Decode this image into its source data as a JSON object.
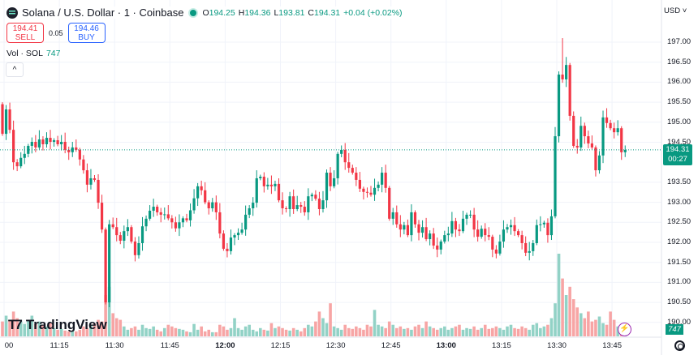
{
  "header": {
    "symbol": "Solana / U.S. Dollar · 1 · Coinbase",
    "open_label": "O",
    "open": "194.25",
    "high_label": "H",
    "high": "194.36",
    "low_label": "L",
    "low": "193.81",
    "close_label": "C",
    "close": "194.31",
    "change": "+0.04 (+0.02%)"
  },
  "trade": {
    "sell_price": "194.41",
    "sell_label": "SELL",
    "spread": "0.05",
    "buy_price": "194.46",
    "buy_label": "BUY"
  },
  "volume_legend": {
    "label": "Vol · SOL",
    "value": "747"
  },
  "collapse_icon": "^",
  "currency": "USD ˅",
  "current_price": {
    "price": "194.31",
    "countdown": "00:27"
  },
  "volume_badge": "747",
  "watermark": "TradingView",
  "colors": {
    "up": "#089981",
    "down": "#f23645",
    "up_vol": "#92d2c6",
    "down_vol": "#f7a5a5"
  },
  "chart_data": {
    "type": "candlestick",
    "title": "Solana / U.S. Dollar · 1 · Coinbase",
    "ylim": [
      189.9,
      197.3
    ],
    "y_ticks": [
      "197.00",
      "196.50",
      "196.00",
      "195.50",
      "195.00",
      "194.50",
      "193.50",
      "193.00",
      "192.50",
      "192.00",
      "191.50",
      "191.00",
      "190.50",
      "190.00"
    ],
    "x_ticks": [
      {
        "label": "00",
        "bold": false
      },
      {
        "label": "11:15",
        "bold": false
      },
      {
        "label": "11:30",
        "bold": false
      },
      {
        "label": "11:45",
        "bold": false
      },
      {
        "label": "12:00",
        "bold": true
      },
      {
        "label": "12:15",
        "bold": false
      },
      {
        "label": "12:30",
        "bold": false
      },
      {
        "label": "12:45",
        "bold": false
      },
      {
        "label": "13:00",
        "bold": true
      },
      {
        "label": "13:15",
        "bold": false
      },
      {
        "label": "13:30",
        "bold": false
      },
      {
        "label": "13:45",
        "bold": false
      }
    ],
    "first_open": 195.45,
    "closes": [
      194.71,
      195.32,
      194.81,
      194.0,
      193.9,
      194.11,
      194.21,
      194.41,
      194.51,
      194.37,
      194.57,
      194.45,
      194.61,
      194.51,
      194.55,
      194.45,
      194.51,
      194.31,
      194.25,
      194.37,
      194.31,
      194.07,
      193.8,
      193.44,
      193.6,
      193.56,
      192.99,
      192.32,
      190.5,
      192.45,
      192.38,
      192.18,
      192.04,
      192.28,
      192.38,
      192.02,
      191.68,
      191.98,
      192.4,
      192.59,
      192.79,
      192.89,
      192.75,
      192.69,
      192.7,
      192.6,
      192.5,
      192.35,
      192.5,
      192.6,
      192.55,
      192.8,
      193.1,
      193.4,
      193.3,
      193.0,
      192.85,
      193.0,
      192.75,
      192.22,
      191.84,
      191.78,
      192.12,
      192.18,
      192.24,
      192.32,
      192.69,
      192.85,
      192.99,
      193.6,
      193.64,
      193.4,
      193.44,
      193.4,
      193.46,
      193.05,
      192.85,
      192.83,
      193.15,
      192.83,
      192.93,
      192.89,
      192.75,
      193.15,
      193.19,
      193.09,
      192.83,
      193.05,
      193.74,
      193.4,
      193.6,
      194.21,
      194.31,
      194.0,
      193.86,
      193.74,
      193.56,
      193.34,
      193.26,
      193.24,
      193.19,
      193.36,
      193.44,
      193.74,
      193.36,
      192.59,
      192.75,
      192.45,
      192.32,
      192.43,
      192.18,
      192.75,
      192.45,
      192.24,
      192.38,
      192.08,
      192.22,
      191.92,
      191.82,
      192.02,
      192.18,
      192.22,
      192.53,
      192.32,
      192.28,
      192.59,
      192.69,
      192.69,
      192.32,
      192.14,
      192.34,
      192.18,
      192.14,
      191.82,
      191.72,
      192.02,
      192.32,
      192.38,
      192.43,
      192.28,
      192.18,
      191.98,
      191.74,
      191.78,
      191.98,
      192.43,
      192.45,
      192.49,
      192.18,
      192.65,
      194.65,
      196.19,
      196.07,
      196.43,
      195.16,
      194.41,
      194.37,
      194.91,
      194.65,
      194.47,
      194.37,
      193.8,
      194.17,
      195.12,
      194.98,
      194.85,
      194.75,
      194.85,
      194.25,
      194.31
    ],
    "volumes": [
      18,
      25,
      20,
      30,
      22,
      18,
      15,
      20,
      25,
      15,
      18,
      14,
      12,
      16,
      10,
      8,
      9,
      7,
      6,
      7,
      6,
      8,
      12,
      10,
      14,
      16,
      20,
      18,
      50,
      60,
      28,
      22,
      20,
      12,
      8,
      10,
      12,
      8,
      14,
      10,
      9,
      12,
      8,
      6,
      10,
      14,
      12,
      10,
      9,
      8,
      6,
      5,
      15,
      8,
      12,
      6,
      8,
      5,
      5,
      14,
      12,
      8,
      10,
      22,
      10,
      8,
      12,
      14,
      8,
      6,
      10,
      8,
      7,
      16,
      10,
      12,
      10,
      8,
      7,
      10,
      8,
      6,
      10,
      14,
      12,
      18,
      30,
      22,
      16,
      40,
      12,
      10,
      8,
      14,
      10,
      9,
      12,
      10,
      8,
      14,
      12,
      32,
      14,
      12,
      10,
      18,
      14,
      10,
      12,
      9,
      10,
      8,
      12,
      14,
      10,
      18,
      12,
      10,
      8,
      10,
      12,
      8,
      10,
      12,
      14,
      8,
      10,
      9,
      12,
      8,
      10,
      14,
      9,
      10,
      12,
      10,
      8,
      12,
      14,
      10,
      9,
      12,
      10,
      8,
      14,
      16,
      10,
      12,
      14,
      22,
      40,
      100,
      70,
      50,
      60,
      45,
      35,
      28,
      22,
      30,
      18,
      20,
      24,
      16,
      14,
      30,
      20,
      12,
      10,
      6
    ],
    "last_price": 194.31
  }
}
